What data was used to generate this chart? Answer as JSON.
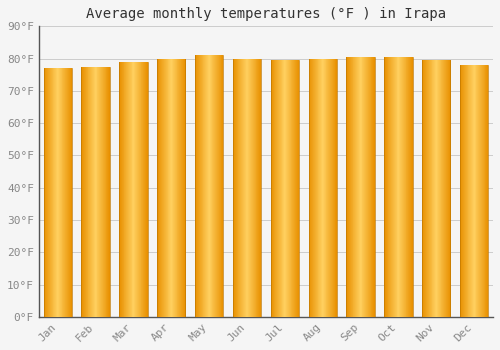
{
  "title": "Average monthly temperatures (°F ) in Irapa",
  "months": [
    "Jan",
    "Feb",
    "Mar",
    "Apr",
    "May",
    "Jun",
    "Jul",
    "Aug",
    "Sep",
    "Oct",
    "Nov",
    "Dec"
  ],
  "values": [
    77.0,
    77.5,
    79.0,
    80.0,
    81.0,
    80.0,
    79.5,
    80.0,
    80.5,
    80.5,
    79.5,
    77.9
  ],
  "bar_color_center": "#FFD060",
  "bar_color_edge": "#F0A000",
  "bar_color_bottom": "#FFA500",
  "background_color": "#f5f5f5",
  "grid_color": "#cccccc",
  "spine_color": "#555555",
  "ylim": [
    0,
    90
  ],
  "yticks": [
    0,
    10,
    20,
    30,
    40,
    50,
    60,
    70,
    80,
    90
  ],
  "ytick_labels": [
    "0°F",
    "10°F",
    "20°F",
    "30°F",
    "40°F",
    "50°F",
    "60°F",
    "70°F",
    "80°F",
    "90°F"
  ],
  "title_fontsize": 10,
  "tick_fontsize": 8,
  "font_family": "monospace",
  "tick_color": "#888888",
  "bar_width": 0.75
}
